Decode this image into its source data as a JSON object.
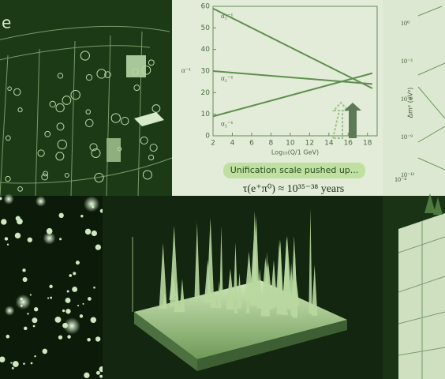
{
  "panels": {
    "left_text": "e",
    "chart_annotation": "Unification scale pushed up...",
    "proton_lifetime": "τ(e⁺π⁰) ≈ 10³⁵⁻³⁸ years",
    "neutrino": {
      "y_label": "Δm² (eV²)",
      "y_ticks": [
        "10⁰",
        "10⁻³",
        "10⁻⁶",
        "10⁻⁹",
        "10⁻¹²"
      ],
      "x_tick": "10⁻⁴"
    }
  },
  "chart_data": {
    "type": "line",
    "x_label": "Log₁₀(Q/1 GeV)",
    "y_label": "α⁻¹",
    "x": [
      2,
      18.5
    ],
    "series": [
      {
        "name": "α₁⁻¹",
        "color": "#5f8f4f",
        "values": [
          59,
          22
        ]
      },
      {
        "name": "α₂⁻¹",
        "color": "#5f8f4f",
        "values": [
          30,
          24
        ]
      },
      {
        "name": "α₃⁻¹",
        "color": "#5f8f4f",
        "values": [
          9,
          29
        ]
      }
    ],
    "xlim": [
      2,
      19
    ],
    "ylim": [
      0,
      60
    ],
    "xticks": [
      2,
      4,
      6,
      8,
      10,
      12,
      14,
      16,
      18
    ],
    "yticks": [
      0,
      10,
      20,
      30,
      40,
      50,
      60
    ]
  }
}
